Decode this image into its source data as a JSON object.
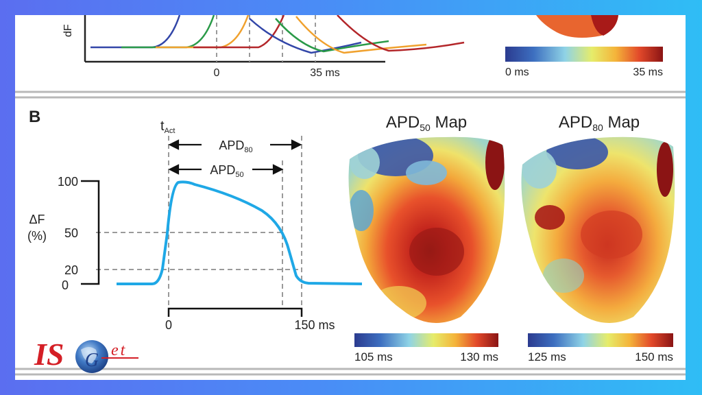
{
  "panel_a": {
    "ylabel_fragment": "dF",
    "xticks": [
      "0",
      "35 ms"
    ],
    "colorbar": {
      "min_label": "0 ms",
      "max_label": "35 ms"
    }
  },
  "panel_b": {
    "label": "B",
    "t_act": {
      "base": "t",
      "sub": "Act"
    },
    "apd80": {
      "base": "APD",
      "sub": "80"
    },
    "apd50": {
      "base": "APD",
      "sub": "50"
    },
    "ylabel_line1": "ΔF",
    "ylabel_line2": "(%)",
    "yticks": [
      "100",
      "50",
      "20",
      "0"
    ],
    "xticks": [
      "0",
      "150 ms"
    ],
    "maps": [
      {
        "title_base": "APD",
        "title_sub": "50",
        "title_rest": " Map",
        "min_label": "105 ms",
        "max_label": "130 ms"
      },
      {
        "title_base": "APD",
        "title_sub": "80",
        "title_rest": " Map",
        "min_label": "125 ms",
        "max_label": "150 ms"
      }
    ]
  },
  "logo": {
    "text_main": "IS",
    "text_tail": "et",
    "text_g": "G"
  },
  "colors": {
    "trace": "#1fa8e6",
    "guide": "#9a9a9a",
    "map_blue": "#3a57a8",
    "map_red": "#c2221d",
    "logo_red": "#d41f26",
    "logo_blue": "#1e3f8a"
  }
}
